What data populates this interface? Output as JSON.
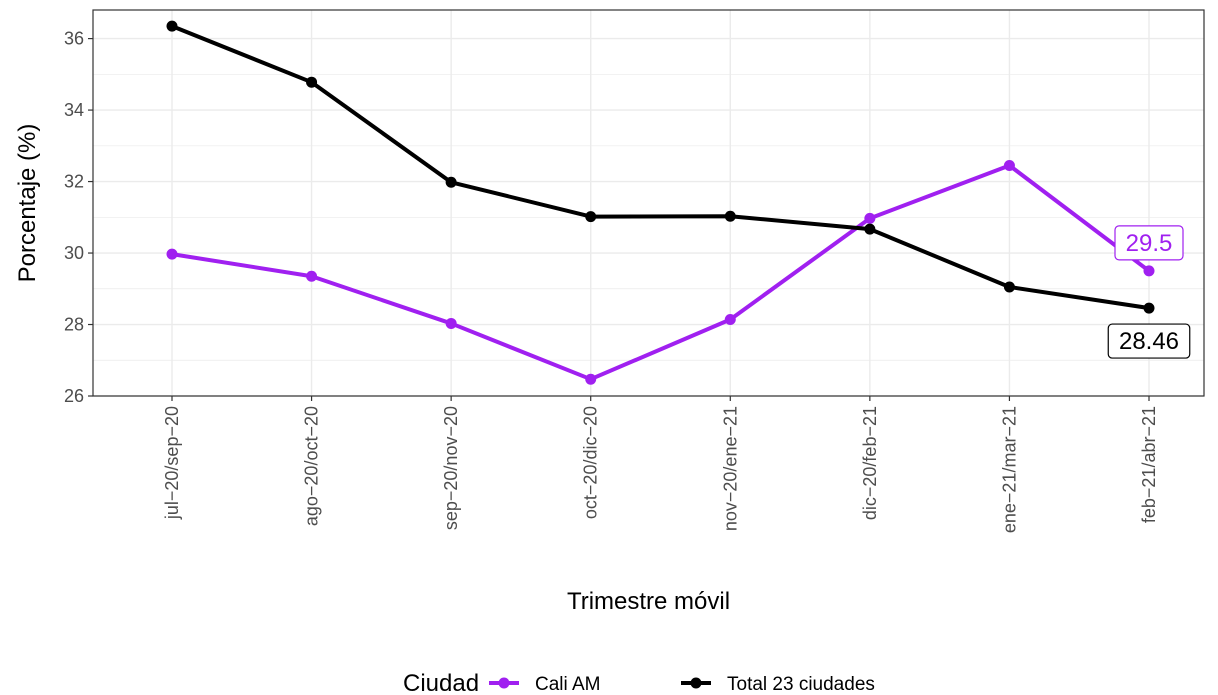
{
  "chart_data": {
    "type": "line",
    "title": "",
    "xlabel": "Trimestre móvil",
    "ylabel": "Porcentaje (%)",
    "categories": [
      "jul−20/sep−20",
      "ago−20/oct−20",
      "sep−20/nov−20",
      "oct−20/dic−20",
      "nov−20/ene−21",
      "dic−20/feb−21",
      "ene−21/mar−21",
      "feb−21/abr−21"
    ],
    "ylim": [
      26,
      36.8
    ],
    "yticks": [
      26,
      28,
      30,
      32,
      34,
      36
    ],
    "ytick_labels": [
      "26",
      "28",
      "30",
      "32",
      "34",
      "36"
    ],
    "grid": true,
    "legend_title": "Ciudad",
    "legend_position": "bottom",
    "series": [
      {
        "name": "Cali AM",
        "color": "#A020F0",
        "values": [
          29.97,
          29.35,
          28.03,
          26.47,
          28.14,
          30.97,
          32.45,
          29.5
        ],
        "end_label": "29.5"
      },
      {
        "name": "Total 23 ciudades",
        "color": "#000000",
        "values": [
          36.35,
          34.78,
          31.98,
          31.02,
          31.03,
          30.67,
          29.05,
          28.46
        ],
        "end_label": "28.46"
      }
    ]
  }
}
